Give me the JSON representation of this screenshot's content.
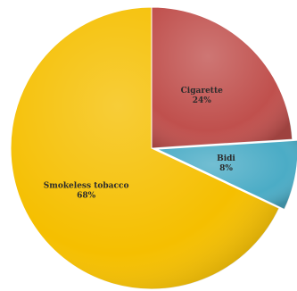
{
  "chart_data": {
    "type": "pie",
    "slices": [
      {
        "label": "Cigarette",
        "value": 24,
        "value_label": "24%",
        "color": "#c0504d"
      },
      {
        "label": "Bidi",
        "value": 8,
        "value_label": "8%",
        "color": "#4bacc6"
      },
      {
        "label": "Smokeless tobacco",
        "value": 68,
        "value_label": "68%",
        "color": "#f5bf00"
      }
    ],
    "start_angle_deg": 0,
    "direction": "clockwise",
    "legend": "none",
    "exploded_slice": "Bidi"
  }
}
